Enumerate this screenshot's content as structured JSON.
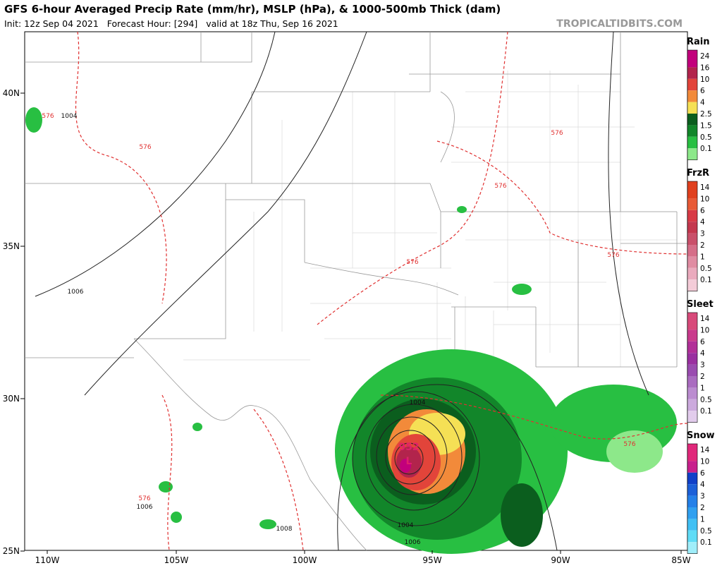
{
  "header": {
    "title": "GFS 6-hour Averaged Precip Rate (mm/hr), MSLP (hPa), & 1000-500mb Thick (dam)",
    "subtitle": "Init: 12z Sep 04 2021   Forecast Hour: [294]   valid at 18z Thu, Sep 16 2021",
    "site": "TROPICALTIDBITS.COM"
  },
  "axes": {
    "longitudes": [
      "110W",
      "105W",
      "100W",
      "95W",
      "90W",
      "85W"
    ],
    "latitudes": [
      "40N",
      "35N",
      "30N",
      "25N"
    ]
  },
  "legends": [
    {
      "title": "Rain",
      "labels": [
        "24",
        "16",
        "10",
        "6",
        "4",
        "2.5",
        "1.5",
        "0.5",
        "0.1"
      ],
      "colors": [
        "#c2007c",
        "#b2244c",
        "#e2443a",
        "#f28a3a",
        "#f5e055",
        "#0b5e1e",
        "#12862a",
        "#28bf42",
        "#8de88a"
      ]
    },
    {
      "title": "FrzR",
      "labels": [
        "14",
        "10",
        "6",
        "4",
        "3",
        "2",
        "1",
        "0.5",
        "0.1"
      ],
      "colors": [
        "#e0401e",
        "#e85a36",
        "#d83a46",
        "#c4384e",
        "#c9506a",
        "#d56e88",
        "#e08ca2",
        "#eaaabd",
        "#f4ccd8"
      ]
    },
    {
      "title": "Sleet",
      "labels": [
        "14",
        "10",
        "6",
        "4",
        "3",
        "2",
        "1",
        "0.5",
        "0.1"
      ],
      "colors": [
        "#d84a7a",
        "#c93a8c",
        "#b23098",
        "#9a30a0",
        "#9a4cb0",
        "#aa6cc0",
        "#bb8cd0",
        "#ccaadd",
        "#e2ccec"
      ]
    },
    {
      "title": "Snow",
      "labels": [
        "14",
        "10",
        "6",
        "4",
        "3",
        "2",
        "1",
        "0.5",
        "0.1"
      ],
      "colors": [
        "#e0287a",
        "#c8208c",
        "#1040c8",
        "#1c60d8",
        "#2480e8",
        "#30a0f0",
        "#40c0f4",
        "#60dcf6",
        "#a0eefa"
      ]
    }
  ],
  "map_labels": [
    "576",
    "576",
    "576",
    "576",
    "576",
    "576",
    "576",
    "576",
    "1004",
    "1006",
    "1006",
    "1008",
    "952",
    "L",
    "1004",
    "1004",
    "1006"
  ]
}
